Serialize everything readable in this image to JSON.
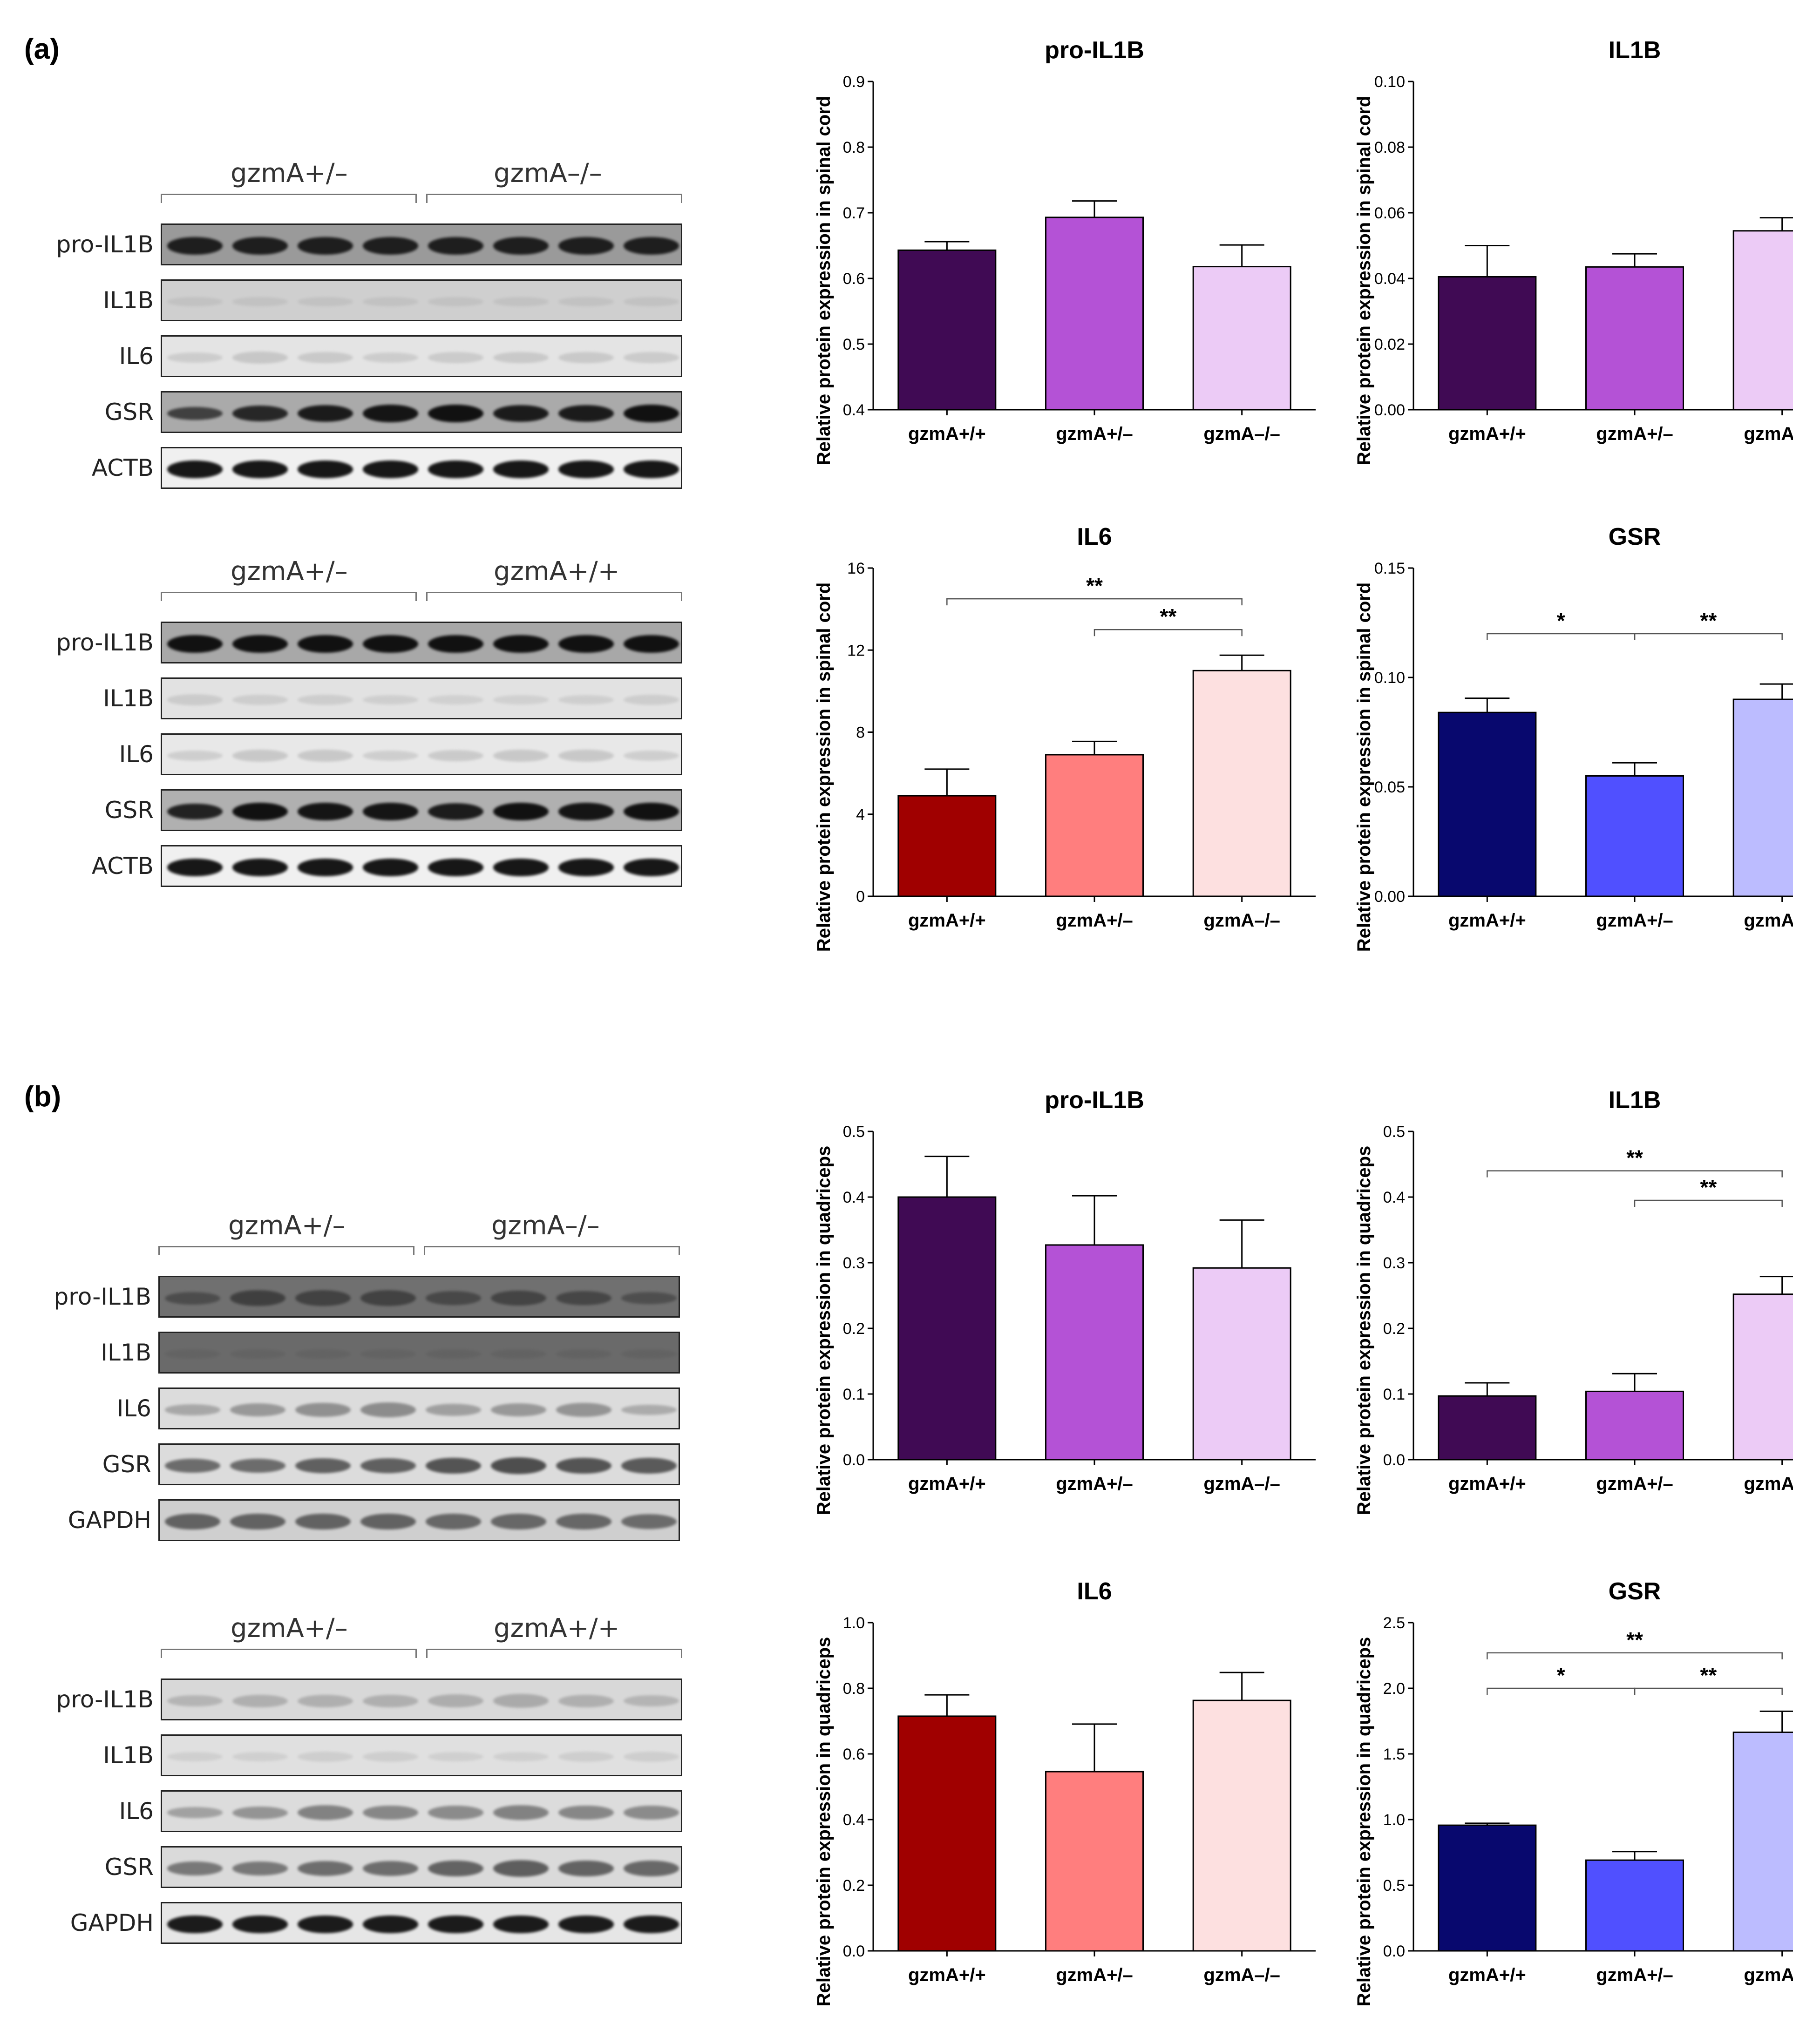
{
  "panels": [
    {
      "label": "(a)",
      "blots": [
        {
          "groups": [
            "gzmA+/–",
            "gzmA–/–"
          ],
          "rows": [
            {
              "name": "pro-IL1B",
              "bg": "#9a9a9a",
              "band": "#1a1a1a",
              "intensity": [
                0.9,
                0.9,
                0.9,
                0.9,
                0.9,
                0.9,
                0.9,
                0.9
              ]
            },
            {
              "name": "IL1B",
              "bg": "#cfcfcf",
              "band": "#b0b0b0",
              "intensity": [
                0.2,
                0.2,
                0.2,
                0.2,
                0.2,
                0.2,
                0.2,
                0.2
              ]
            },
            {
              "name": "IL6",
              "bg": "#e4e4e4",
              "band": "#b5b5b5",
              "intensity": [
                0.3,
                0.45,
                0.4,
                0.3,
                0.35,
                0.4,
                0.4,
                0.35
              ]
            },
            {
              "name": "GSR",
              "bg": "#aaaaaa",
              "band": "#111111",
              "intensity": [
                0.55,
                0.75,
                0.85,
                0.9,
                0.95,
                0.85,
                0.85,
                0.95
              ]
            },
            {
              "name": "ACTB",
              "bg": "#f0f0f0",
              "band": "#111111",
              "intensity": [
                0.9,
                0.9,
                0.9,
                0.9,
                0.9,
                0.9,
                0.9,
                0.9
              ]
            }
          ]
        },
        {
          "groups": [
            "gzmA+/–",
            "gzmA+/+"
          ],
          "rows": [
            {
              "name": "pro-IL1B",
              "bg": "#a8a8a8",
              "band": "#111111",
              "intensity": [
                0.95,
                0.95,
                0.95,
                0.95,
                0.95,
                0.95,
                0.95,
                0.95
              ]
            },
            {
              "name": "IL1B",
              "bg": "#e2e2e2",
              "band": "#b8b8b8",
              "intensity": [
                0.35,
                0.3,
                0.3,
                0.25,
                0.2,
                0.2,
                0.25,
                0.3
              ]
            },
            {
              "name": "IL6",
              "bg": "#e8e8e8",
              "band": "#b5b5b5",
              "intensity": [
                0.3,
                0.45,
                0.45,
                0.3,
                0.4,
                0.45,
                0.45,
                0.3
              ]
            },
            {
              "name": "GSR",
              "bg": "#b0b0b0",
              "band": "#111111",
              "intensity": [
                0.8,
                0.95,
                0.9,
                0.9,
                0.85,
                0.95,
                0.9,
                0.95
              ]
            },
            {
              "name": "ACTB",
              "bg": "#f0f0f0",
              "band": "#111111",
              "intensity": [
                0.9,
                0.9,
                0.9,
                0.9,
                0.9,
                0.9,
                0.9,
                0.9
              ]
            }
          ]
        }
      ]
    },
    {
      "label": "(b)",
      "blots": [
        {
          "groups": [
            "gzmA+/–",
            "gzmA–/–"
          ],
          "rows": [
            {
              "name": "pro-IL1B",
              "bg": "#707070",
              "band": "#3a3a3a",
              "intensity": [
                0.5,
                0.8,
                0.75,
                0.75,
                0.6,
                0.7,
                0.65,
                0.45
              ]
            },
            {
              "name": "IL1B",
              "bg": "#6a6a6a",
              "band": "#5a5a5a",
              "intensity": [
                0.2,
                0.2,
                0.2,
                0.2,
                0.25,
                0.25,
                0.25,
                0.25
              ]
            },
            {
              "name": "IL6",
              "bg": "#dcdcdc",
              "band": "#7a7a7a",
              "intensity": [
                0.35,
                0.55,
                0.65,
                0.7,
                0.45,
                0.55,
                0.6,
                0.3
              ]
            },
            {
              "name": "GSR",
              "bg": "#dcdcdc",
              "band": "#444444",
              "intensity": [
                0.6,
                0.6,
                0.7,
                0.7,
                0.8,
                0.85,
                0.8,
                0.75
              ]
            },
            {
              "name": "GAPDH",
              "bg": "#cfcfcf",
              "band": "#555555",
              "intensity": [
                0.8,
                0.8,
                0.8,
                0.8,
                0.75,
                0.75,
                0.75,
                0.7
              ]
            }
          ]
        },
        {
          "groups": [
            "gzmA+/–",
            "gzmA+/+"
          ],
          "rows": [
            {
              "name": "pro-IL1B",
              "bg": "#d8d8d8",
              "band": "#9a9a9a",
              "intensity": [
                0.4,
                0.5,
                0.5,
                0.5,
                0.55,
                0.6,
                0.5,
                0.4
              ]
            },
            {
              "name": "IL1B",
              "bg": "#e0e0e0",
              "band": "#bcbcbc",
              "intensity": [
                0.25,
                0.25,
                0.3,
                0.3,
                0.25,
                0.25,
                0.3,
                0.3
              ]
            },
            {
              "name": "IL6",
              "bg": "#dcdcdc",
              "band": "#6e6e6e",
              "intensity": [
                0.35,
                0.5,
                0.7,
                0.65,
                0.6,
                0.7,
                0.65,
                0.6
              ]
            },
            {
              "name": "GSR",
              "bg": "#dadada",
              "band": "#555555",
              "intensity": [
                0.6,
                0.6,
                0.7,
                0.7,
                0.8,
                0.85,
                0.8,
                0.75
              ]
            },
            {
              "name": "GAPDH",
              "bg": "#e6e6e6",
              "band": "#151515",
              "intensity": [
                0.9,
                0.9,
                0.9,
                0.9,
                0.9,
                0.9,
                0.9,
                0.9
              ]
            }
          ]
        }
      ]
    }
  ],
  "chart_data": [
    {
      "type": "bar",
      "title": "pro-IL1B",
      "ylabel": "Relative protein expression in spinal cord",
      "categories": [
        "gzmA+/+",
        "gzmA+/–",
        "gzmA–/–"
      ],
      "values": [
        0.643,
        0.693,
        0.618
      ],
      "errors": [
        0.013,
        0.025,
        0.033
      ],
      "ylim": [
        0.4,
        0.9
      ],
      "yticks": [
        "0.4",
        "0.5",
        "0.6",
        "0.7",
        "0.8",
        "0.9"
      ],
      "colors": [
        "#400a54",
        "#b452d6",
        "#eccbf6"
      ],
      "significance": []
    },
    {
      "type": "bar",
      "title": "IL1B",
      "ylabel": "Relative protein expression in spinal cord",
      "categories": [
        "gzmA+/+",
        "gzmA+/–",
        "gzmA–/–"
      ],
      "values": [
        0.0405,
        0.0435,
        0.0545
      ],
      "errors": [
        0.0095,
        0.004,
        0.004
      ],
      "ylim": [
        0,
        0.1
      ],
      "yticks": [
        "0.00",
        "0.02",
        "0.04",
        "0.06",
        "0.08",
        "0.10"
      ],
      "colors": [
        "#400a54",
        "#b452d6",
        "#eccbf6"
      ],
      "significance": []
    },
    {
      "type": "bar",
      "title": "IL6",
      "ylabel": "Relative protein expression in spinal cord",
      "categories": [
        "gzmA+/+",
        "gzmA+/–",
        "gzmA–/–"
      ],
      "values": [
        4.9,
        6.9,
        11.0
      ],
      "errors": [
        1.3,
        0.65,
        0.75
      ],
      "ylim": [
        0,
        16
      ],
      "yticks": [
        "0",
        "4",
        "8",
        "12",
        "16"
      ],
      "colors": [
        "#a00000",
        "#ff7e7e",
        "#fde0e0"
      ],
      "significance": [
        {
          "from": 0,
          "to": 2,
          "label": "**",
          "y": 14.5
        },
        {
          "from": 1,
          "to": 2,
          "label": "**",
          "y": 13.0
        }
      ]
    },
    {
      "type": "bar",
      "title": "GSR",
      "ylabel": "Relative protein expression in spinal cord",
      "categories": [
        "gzmA+/+",
        "gzmA+/–",
        "gzmA–/–"
      ],
      "values": [
        0.084,
        0.055,
        0.09
      ],
      "errors": [
        0.0065,
        0.006,
        0.007
      ],
      "ylim": [
        0,
        0.15
      ],
      "yticks": [
        "0.00",
        "0.05",
        "0.10",
        "0.15"
      ],
      "colors": [
        "#08086e",
        "#5050ff",
        "#bcbcff"
      ],
      "significance": [
        {
          "from": 0,
          "to": 1,
          "label": "*",
          "y": 0.12
        },
        {
          "from": 1,
          "to": 2,
          "label": "**",
          "y": 0.12
        }
      ]
    },
    {
      "type": "bar",
      "title": "pro-IL1B",
      "ylabel": "Relative protein expression in quadriceps",
      "categories": [
        "gzmA+/+",
        "gzmA+/–",
        "gzmA–/–"
      ],
      "values": [
        0.4,
        0.327,
        0.292
      ],
      "errors": [
        0.062,
        0.075,
        0.073
      ],
      "ylim": [
        0,
        0.5
      ],
      "yticks": [
        "0.0",
        "0.1",
        "0.2",
        "0.3",
        "0.4",
        "0.5"
      ],
      "colors": [
        "#400a54",
        "#b452d6",
        "#eccbf6"
      ],
      "significance": []
    },
    {
      "type": "bar",
      "title": "IL1B",
      "ylabel": "Relative protein expression in quadriceps",
      "categories": [
        "gzmA+/+",
        "gzmA+/–",
        "gzmA–/–"
      ],
      "values": [
        0.097,
        0.104,
        0.252
      ],
      "errors": [
        0.02,
        0.027,
        0.027
      ],
      "ylim": [
        0,
        0.5
      ],
      "yticks": [
        "0.0",
        "0.1",
        "0.2",
        "0.3",
        "0.4",
        "0.5"
      ],
      "colors": [
        "#400a54",
        "#b452d6",
        "#eccbf6"
      ],
      "significance": [
        {
          "from": 0,
          "to": 2,
          "label": "**",
          "y": 0.44
        },
        {
          "from": 1,
          "to": 2,
          "label": "**",
          "y": 0.395
        }
      ]
    },
    {
      "type": "bar",
      "title": "IL6",
      "ylabel": "Relative protein expression in quadriceps",
      "categories": [
        "gzmA+/+",
        "gzmA+/–",
        "gzmA–/–"
      ],
      "values": [
        0.715,
        0.546,
        0.763
      ],
      "errors": [
        0.065,
        0.145,
        0.085
      ],
      "ylim": [
        0,
        1.0
      ],
      "yticks": [
        "0.0",
        "0.2",
        "0.4",
        "0.6",
        "0.8",
        "1.0"
      ],
      "colors": [
        "#a00000",
        "#ff7e7e",
        "#fde0e0"
      ],
      "significance": []
    },
    {
      "type": "bar",
      "title": "GSR",
      "ylabel": "Relative protein expression in quadriceps",
      "categories": [
        "gzmA+/+",
        "gzmA+/–",
        "gzmA–/–"
      ],
      "values": [
        0.957,
        0.691,
        1.665
      ],
      "errors": [
        0.015,
        0.065,
        0.16
      ],
      "ylim": [
        0,
        2.5
      ],
      "yticks": [
        "0.0",
        "0.5",
        "1.0",
        "1.5",
        "2.0",
        "2.5"
      ],
      "colors": [
        "#08086e",
        "#5050ff",
        "#bcbcff"
      ],
      "significance": [
        {
          "from": 0,
          "to": 2,
          "label": "**",
          "y": 2.27
        },
        {
          "from": 0,
          "to": 1,
          "label": "*",
          "y": 2.0
        },
        {
          "from": 1,
          "to": 2,
          "label": "**",
          "y": 2.0
        }
      ]
    }
  ]
}
